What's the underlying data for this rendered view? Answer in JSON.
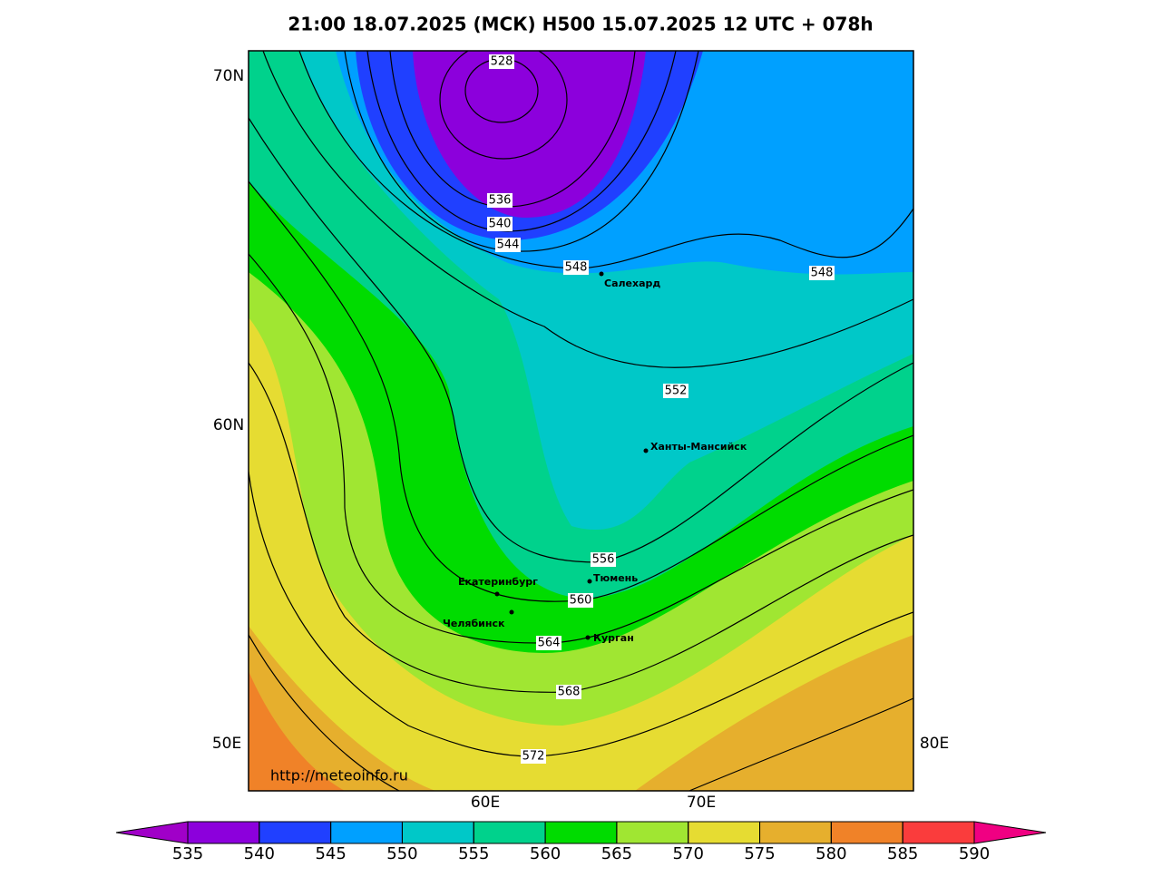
{
  "header": {
    "title": "21:00 18.07.2025 (МСК) H500  15.07.2025 12 UTC + 078h"
  },
  "map": {
    "axis_labels": [
      "70N",
      "60N",
      "50E",
      "80E",
      "60E",
      "70E"
    ],
    "contour_labels": [
      528,
      536,
      540,
      544,
      548,
      548,
      552,
      556,
      560,
      564,
      568,
      572
    ],
    "cities": [
      "Салехард",
      "Ханты-Мансийск",
      "Екатеринбург",
      "Тюмень",
      "Челябинск",
      "Курган"
    ],
    "watermark": "http://meteoinfo.ru"
  },
  "colorbar": {
    "ticks": [
      535,
      540,
      545,
      550,
      555,
      560,
      565,
      570,
      575,
      580,
      585,
      590
    ],
    "colors": [
      "#8c00dc",
      "#2040ff",
      "#00a0ff",
      "#00c8c8",
      "#00d28c",
      "#00dc00",
      "#a0e632",
      "#e6dc32",
      "#e6af2d",
      "#f08228",
      "#fa3c3c"
    ],
    "under_color": "#a000c8",
    "over_color": "#f00082"
  }
}
